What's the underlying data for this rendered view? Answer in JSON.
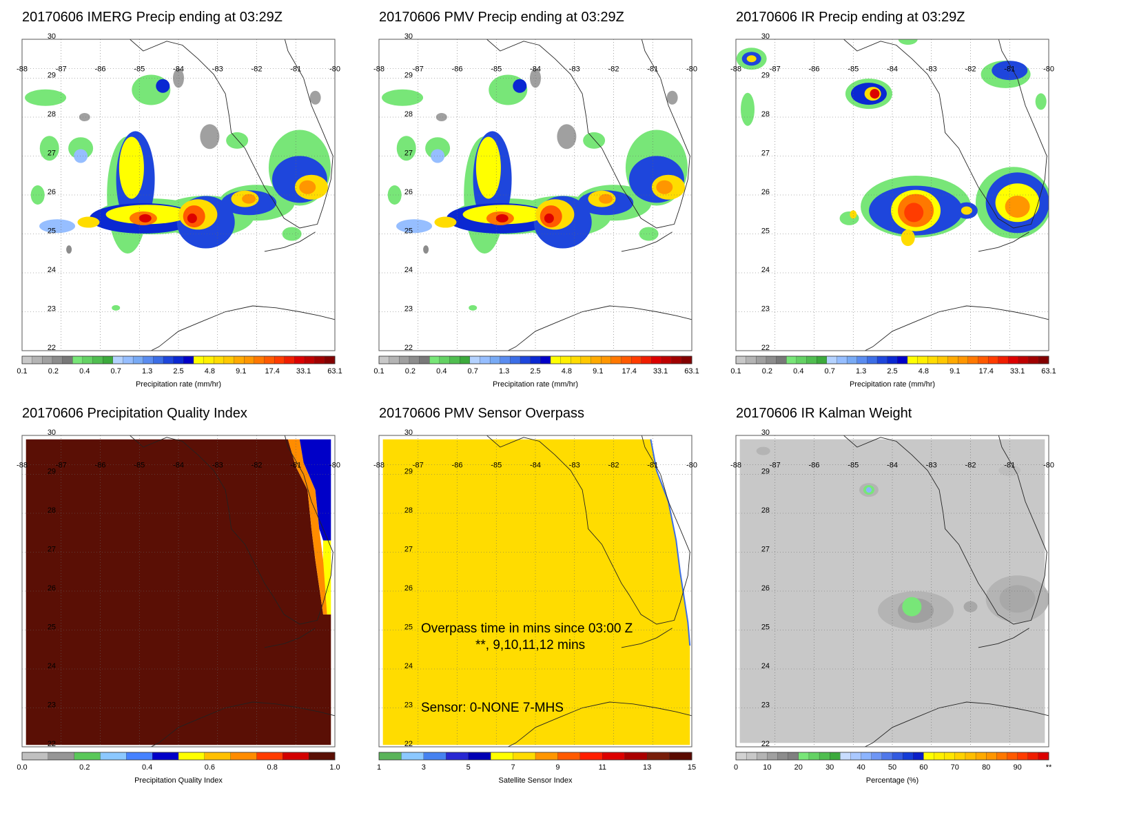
{
  "chart_data": [
    {
      "type": "heatmap",
      "title": "20170606 IMERG Precip ending at 03:29Z",
      "field": "imerg",
      "lon_range": [
        -88,
        -80
      ],
      "lat_range": [
        22,
        30
      ],
      "lon_ticks": [
        "-88",
        "-87",
        "-86",
        "-85",
        "-84",
        "-83",
        "-82",
        "-81",
        "-80"
      ],
      "lat_ticks": [
        "22",
        "23",
        "24",
        "25",
        "26",
        "27",
        "28",
        "29",
        "30"
      ],
      "grid": true,
      "colorbar": {
        "label": "Precipitation rate (mm/hr)",
        "ticks": [
          "0.1",
          "0.2",
          "0.4",
          "0.7",
          "1.3",
          "2.5",
          "4.8",
          "9.1",
          "17.4",
          "33.1",
          "63.1"
        ],
        "colors": [
          "#c8c8c8",
          "#b4b4b4",
          "#a0a0a0",
          "#8c8c8c",
          "#787878",
          "#78e678",
          "#64d264",
          "#50be50",
          "#3caa3c",
          "#b4d2ff",
          "#96beff",
          "#78aaf5",
          "#5a8cf0",
          "#3c6ee6",
          "#1e46dc",
          "#0a28d2",
          "#0000c8",
          "#ffff00",
          "#fff000",
          "#ffdc00",
          "#ffc800",
          "#ffaa00",
          "#ff9600",
          "#ff7800",
          "#ff5a00",
          "#ff3c00",
          "#f01e00",
          "#dc0000",
          "#be0000",
          "#a00000",
          "#820000"
        ]
      }
    },
    {
      "type": "heatmap",
      "title": "20170606 PMV Precip ending at 03:29Z",
      "field": "pmv",
      "lon_range": [
        -88,
        -80
      ],
      "lat_range": [
        22,
        30
      ],
      "lon_ticks": [
        "-88",
        "-87",
        "-86",
        "-85",
        "-84",
        "-83",
        "-82",
        "-81",
        "-80"
      ],
      "lat_ticks": [
        "22",
        "23",
        "24",
        "25",
        "26",
        "27",
        "28",
        "29",
        "30"
      ],
      "grid": true,
      "colorbar": {
        "label": "Precipitation rate (mm/hr)",
        "ticks": [
          "0.1",
          "0.2",
          "0.4",
          "0.7",
          "1.3",
          "2.5",
          "4.8",
          "9.1",
          "17.4",
          "33.1",
          "63.1"
        ],
        "colors": [
          "#c8c8c8",
          "#b4b4b4",
          "#a0a0a0",
          "#8c8c8c",
          "#787878",
          "#78e678",
          "#64d264",
          "#50be50",
          "#3caa3c",
          "#b4d2ff",
          "#96beff",
          "#78aaf5",
          "#5a8cf0",
          "#3c6ee6",
          "#1e46dc",
          "#0a28d2",
          "#0000c8",
          "#ffff00",
          "#fff000",
          "#ffdc00",
          "#ffc800",
          "#ffaa00",
          "#ff9600",
          "#ff7800",
          "#ff5a00",
          "#ff3c00",
          "#f01e00",
          "#dc0000",
          "#be0000",
          "#a00000",
          "#820000"
        ]
      }
    },
    {
      "type": "heatmap",
      "title": "20170606 IR Precip ending at 03:29Z",
      "field": "ir",
      "lon_range": [
        -88,
        -80
      ],
      "lat_range": [
        22,
        30
      ],
      "lon_ticks": [
        "-88",
        "-87",
        "-86",
        "-85",
        "-84",
        "-83",
        "-82",
        "-81",
        "-80"
      ],
      "lat_ticks": [
        "22",
        "23",
        "24",
        "25",
        "26",
        "27",
        "28",
        "29",
        "30"
      ],
      "grid": true,
      "colorbar": {
        "label": "Precipitation rate (mm/hr)",
        "ticks": [
          "0.1",
          "0.2",
          "0.4",
          "0.7",
          "1.3",
          "2.5",
          "4.8",
          "9.1",
          "17.4",
          "33.1",
          "63.1"
        ],
        "colors": [
          "#c8c8c8",
          "#b4b4b4",
          "#a0a0a0",
          "#8c8c8c",
          "#787878",
          "#78e678",
          "#64d264",
          "#50be50",
          "#3caa3c",
          "#b4d2ff",
          "#96beff",
          "#78aaf5",
          "#5a8cf0",
          "#3c6ee6",
          "#1e46dc",
          "#0a28d2",
          "#0000c8",
          "#ffff00",
          "#fff000",
          "#ffdc00",
          "#ffc800",
          "#ffaa00",
          "#ff9600",
          "#ff7800",
          "#ff5a00",
          "#ff3c00",
          "#f01e00",
          "#dc0000",
          "#be0000",
          "#a00000",
          "#820000"
        ]
      }
    },
    {
      "type": "heatmap",
      "title": "20170606 Precipitation Quality Index",
      "field": "pqi",
      "lon_range": [
        -88,
        -80
      ],
      "lat_range": [
        22,
        30
      ],
      "lon_ticks": [
        "-88",
        "-87",
        "-86",
        "-85",
        "-84",
        "-83",
        "-82",
        "-81",
        "-80"
      ],
      "lat_ticks": [
        "22",
        "23",
        "24",
        "25",
        "26",
        "27",
        "28",
        "29",
        "30"
      ],
      "grid": true,
      "colorbar": {
        "label": "Precipitation Quality Index",
        "ticks": [
          "0.0",
          "0.2",
          "0.4",
          "0.6",
          "0.8",
          "1.0"
        ],
        "colors": [
          "#c0c0c0",
          "#969696",
          "#5ac85a",
          "#8cc8ff",
          "#4682ff",
          "#0000c8",
          "#ffff00",
          "#ffc000",
          "#ff8c00",
          "#ff3c00",
          "#d20000",
          "#5a0f05"
        ]
      }
    },
    {
      "type": "heatmap",
      "title": "20170606 PMV Sensor Overpass",
      "field": "pmv_sensor",
      "lon_range": [
        -88,
        -80
      ],
      "lat_range": [
        22,
        30
      ],
      "lon_ticks": [
        "-88",
        "-87",
        "-86",
        "-85",
        "-84",
        "-83",
        "-82",
        "-81",
        "-80"
      ],
      "lat_ticks": [
        "22",
        "23",
        "24",
        "25",
        "26",
        "27",
        "28",
        "29",
        "30"
      ],
      "grid": true,
      "annotations": [
        "Overpass time in mins since 03:00 Z",
        "**, 9,10,11,12 mins",
        "Sensor:   0-NONE  7-MHS"
      ],
      "colorbar": {
        "label": "Satellite Sensor Index",
        "ticks": [
          "1",
          "3",
          "5",
          "7",
          "9",
          "11",
          "13",
          "15"
        ],
        "colors": [
          "#5ab45a",
          "#8cc8ff",
          "#4682f0",
          "#2828d2",
          "#0000b4",
          "#ffff00",
          "#ffdc00",
          "#ff9600",
          "#ff5a00",
          "#ff1e00",
          "#dc0000",
          "#aa0000",
          "#781e0a",
          "#5a0a00"
        ]
      }
    },
    {
      "type": "heatmap",
      "title": "20170606 IR Kalman Weight",
      "field": "kalman",
      "lon_range": [
        -88,
        -80
      ],
      "lat_range": [
        22,
        30
      ],
      "lon_ticks": [
        "-88",
        "-87",
        "-86",
        "-85",
        "-84",
        "-83",
        "-82",
        "-81",
        "-80"
      ],
      "lat_ticks": [
        "22",
        "23",
        "24",
        "25",
        "26",
        "27",
        "28",
        "29",
        "30"
      ],
      "grid": true,
      "colorbar": {
        "label": "Percentage (%)",
        "ticks": [
          "0",
          "10",
          "20",
          "30",
          "40",
          "50",
          "60",
          "70",
          "80",
          "90",
          "**"
        ],
        "colors": [
          "#d2d2d2",
          "#c8c8c8",
          "#b4b4b4",
          "#a0a0a0",
          "#8c8c8c",
          "#808080",
          "#78e678",
          "#64d264",
          "#50be50",
          "#3caa3c",
          "#c8dcff",
          "#aac8ff",
          "#8cb4ff",
          "#6e96f5",
          "#5078eb",
          "#325ae1",
          "#143cd7",
          "#0a1ec8",
          "#ffff00",
          "#fff000",
          "#ffe600",
          "#ffd200",
          "#ffbe00",
          "#ffaa00",
          "#ff9600",
          "#ff7800",
          "#ff5a00",
          "#ff3c00",
          "#f01e00",
          "#dc0000"
        ]
      }
    }
  ]
}
